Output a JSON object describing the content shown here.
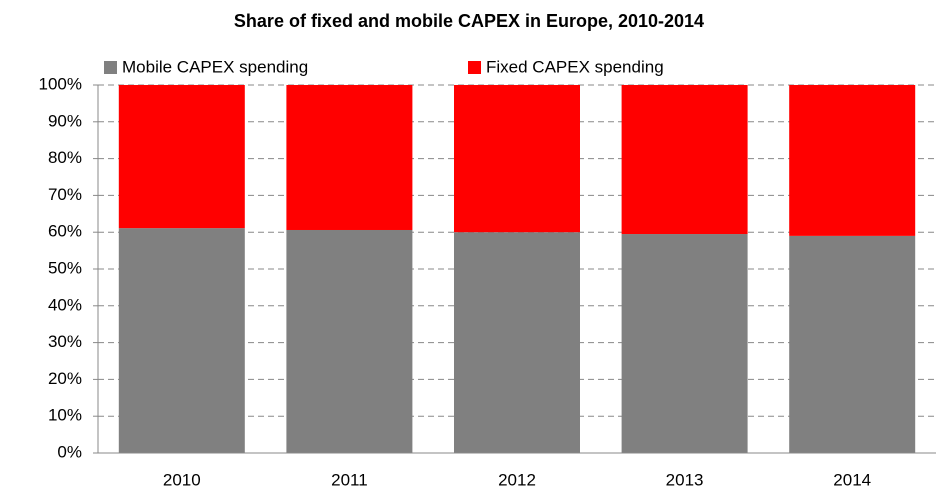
{
  "chart_data": {
    "type": "stacked_bar",
    "title": "Share of fixed and mobile CAPEX in Europe, 2010-2014",
    "categories": [
      "2010",
      "2011",
      "2012",
      "2013",
      "2014"
    ],
    "series": [
      {
        "name": "Mobile CAPEX spending",
        "color": "#808080",
        "values": [
          61.1,
          60.6,
          60.0,
          59.5,
          59.0
        ]
      },
      {
        "name": "Fixed CAPEX spending",
        "color": "#ff0000",
        "values": [
          38.9,
          39.4,
          40.0,
          40.5,
          41.0
        ]
      }
    ],
    "ylim": [
      0,
      100
    ],
    "yticks": [
      {
        "value": 0,
        "label": "0%"
      },
      {
        "value": 10,
        "label": "10%"
      },
      {
        "value": 20,
        "label": "20%"
      },
      {
        "value": 30,
        "label": "30%"
      },
      {
        "value": 40,
        "label": "40%"
      },
      {
        "value": 50,
        "label": "50%"
      },
      {
        "value": 60,
        "label": "60%"
      },
      {
        "value": 70,
        "label": "70%"
      },
      {
        "value": 80,
        "label": "80%"
      },
      {
        "value": 90,
        "label": "90%"
      },
      {
        "value": 100,
        "label": "100%"
      }
    ],
    "grid": true,
    "legend": "top"
  }
}
